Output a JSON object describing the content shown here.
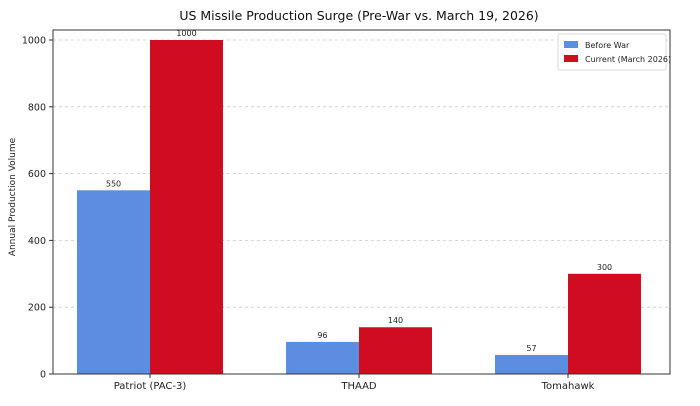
{
  "chart_data": {
    "type": "bar",
    "title": "US Missile Production Surge (Pre-War vs. March 19, 2026)",
    "xlabel": "",
    "ylabel": "Annual Production Volume",
    "categories": [
      "Patriot (PAC-3)",
      "THAAD",
      "Tomahawk"
    ],
    "series": [
      {
        "name": "Before War",
        "values": [
          550,
          96,
          57
        ],
        "color": "#5b8ee0"
      },
      {
        "name": "Current (March 2026)",
        "values": [
          1000,
          140,
          300
        ],
        "color": "#d00c20"
      }
    ],
    "ylim": [
      0,
      1000
    ],
    "yticks": [
      0,
      200,
      400,
      600,
      800,
      1000
    ],
    "grid": true,
    "grid_axis": "y",
    "legend_position": "top-right"
  }
}
